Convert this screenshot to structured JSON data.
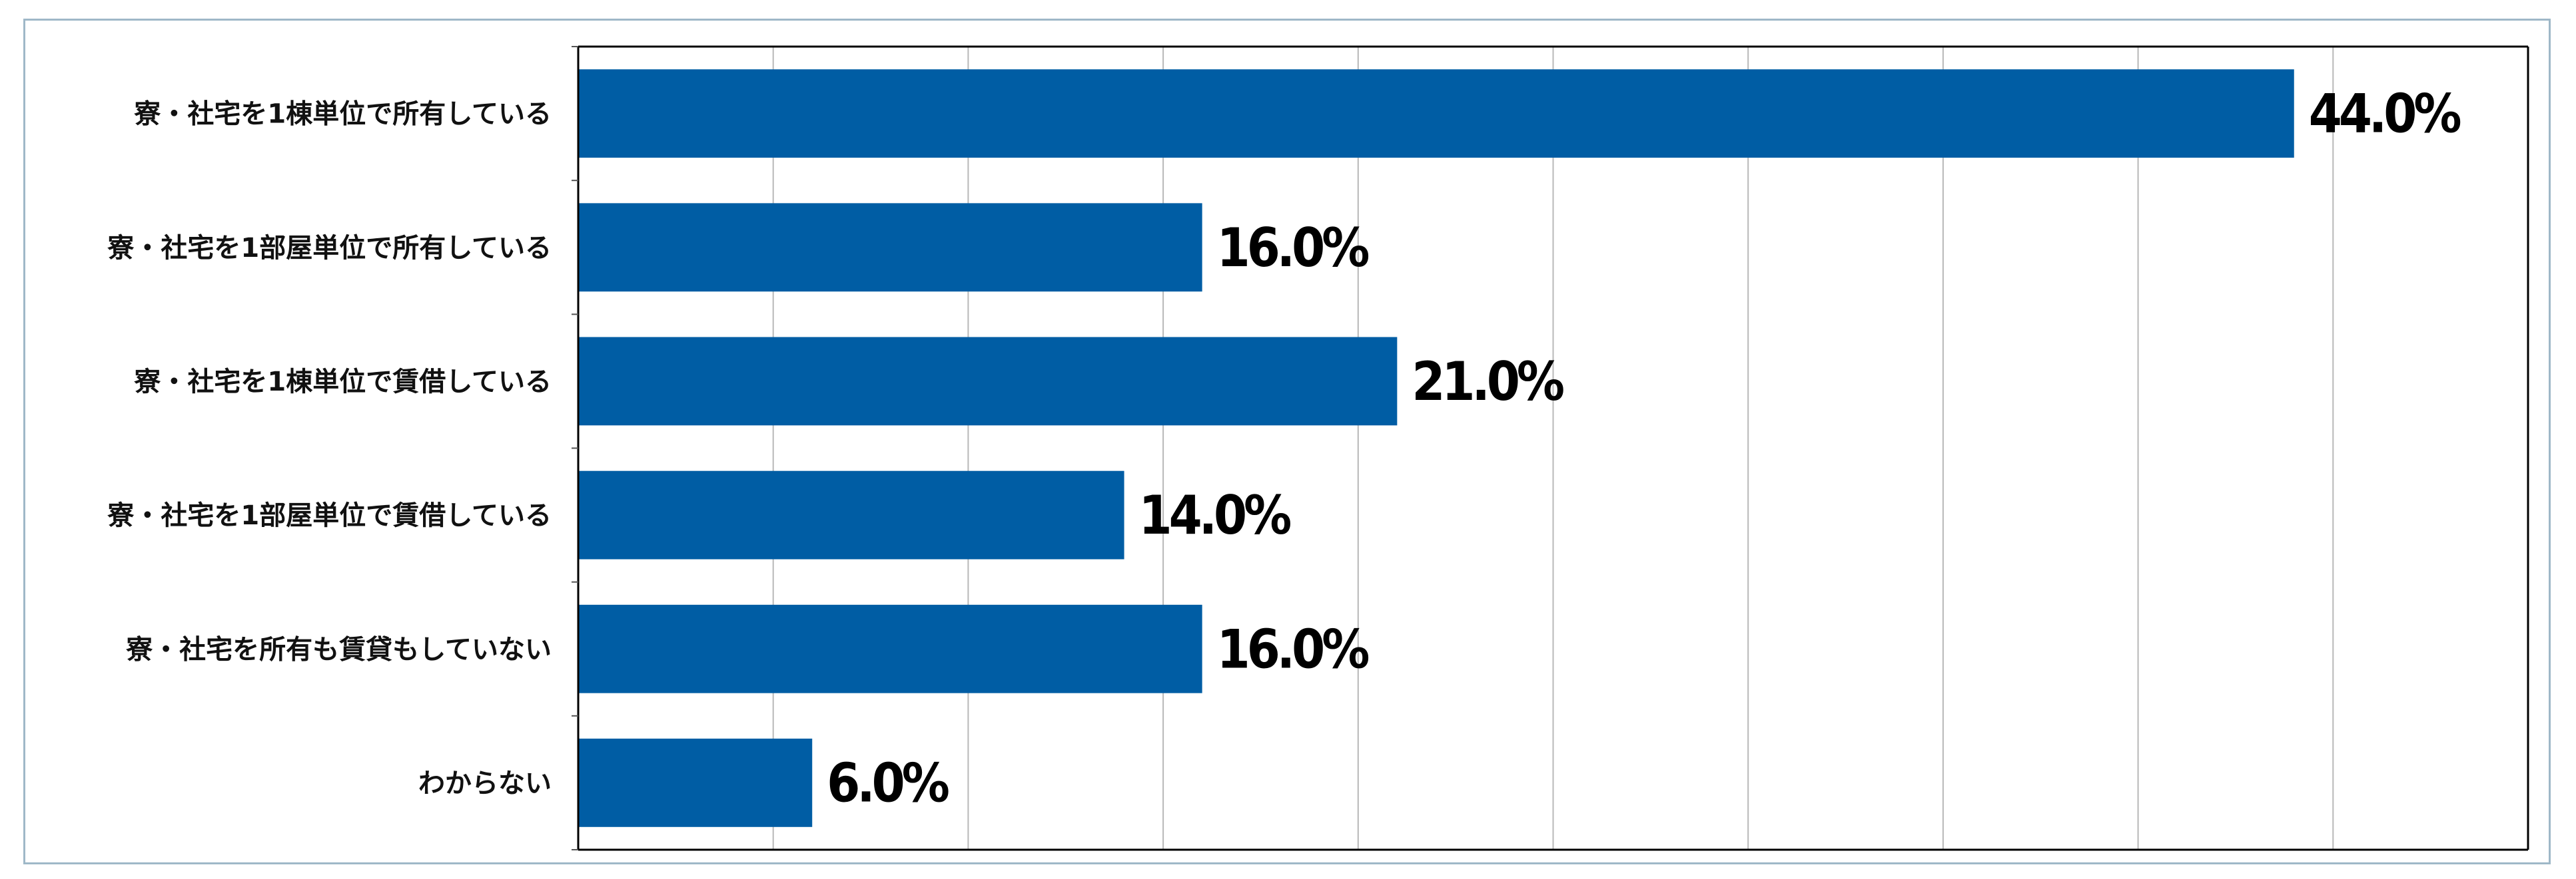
{
  "chart_data": {
    "type": "bar",
    "orientation": "horizontal",
    "categories": [
      "寮・社宅を1棟単位で所有している",
      "寮・社宅を1部屋単位で所有している",
      "寮・社宅を1棟単位で賃借している",
      "寮・社宅を1部屋単位で賃借している",
      "寮・社宅を所有も賃貸もしていない",
      "わからない"
    ],
    "values": [
      44.0,
      16.0,
      21.0,
      14.0,
      16.0,
      6.0
    ],
    "value_labels": [
      "44.0%",
      "16.0%",
      "21.0%",
      "14.0%",
      "16.0%",
      "6.0%"
    ],
    "xlim": [
      0,
      50
    ],
    "x_gridline_step": 5,
    "grid": true,
    "legend": "none",
    "bar_color": "#005da4"
  }
}
